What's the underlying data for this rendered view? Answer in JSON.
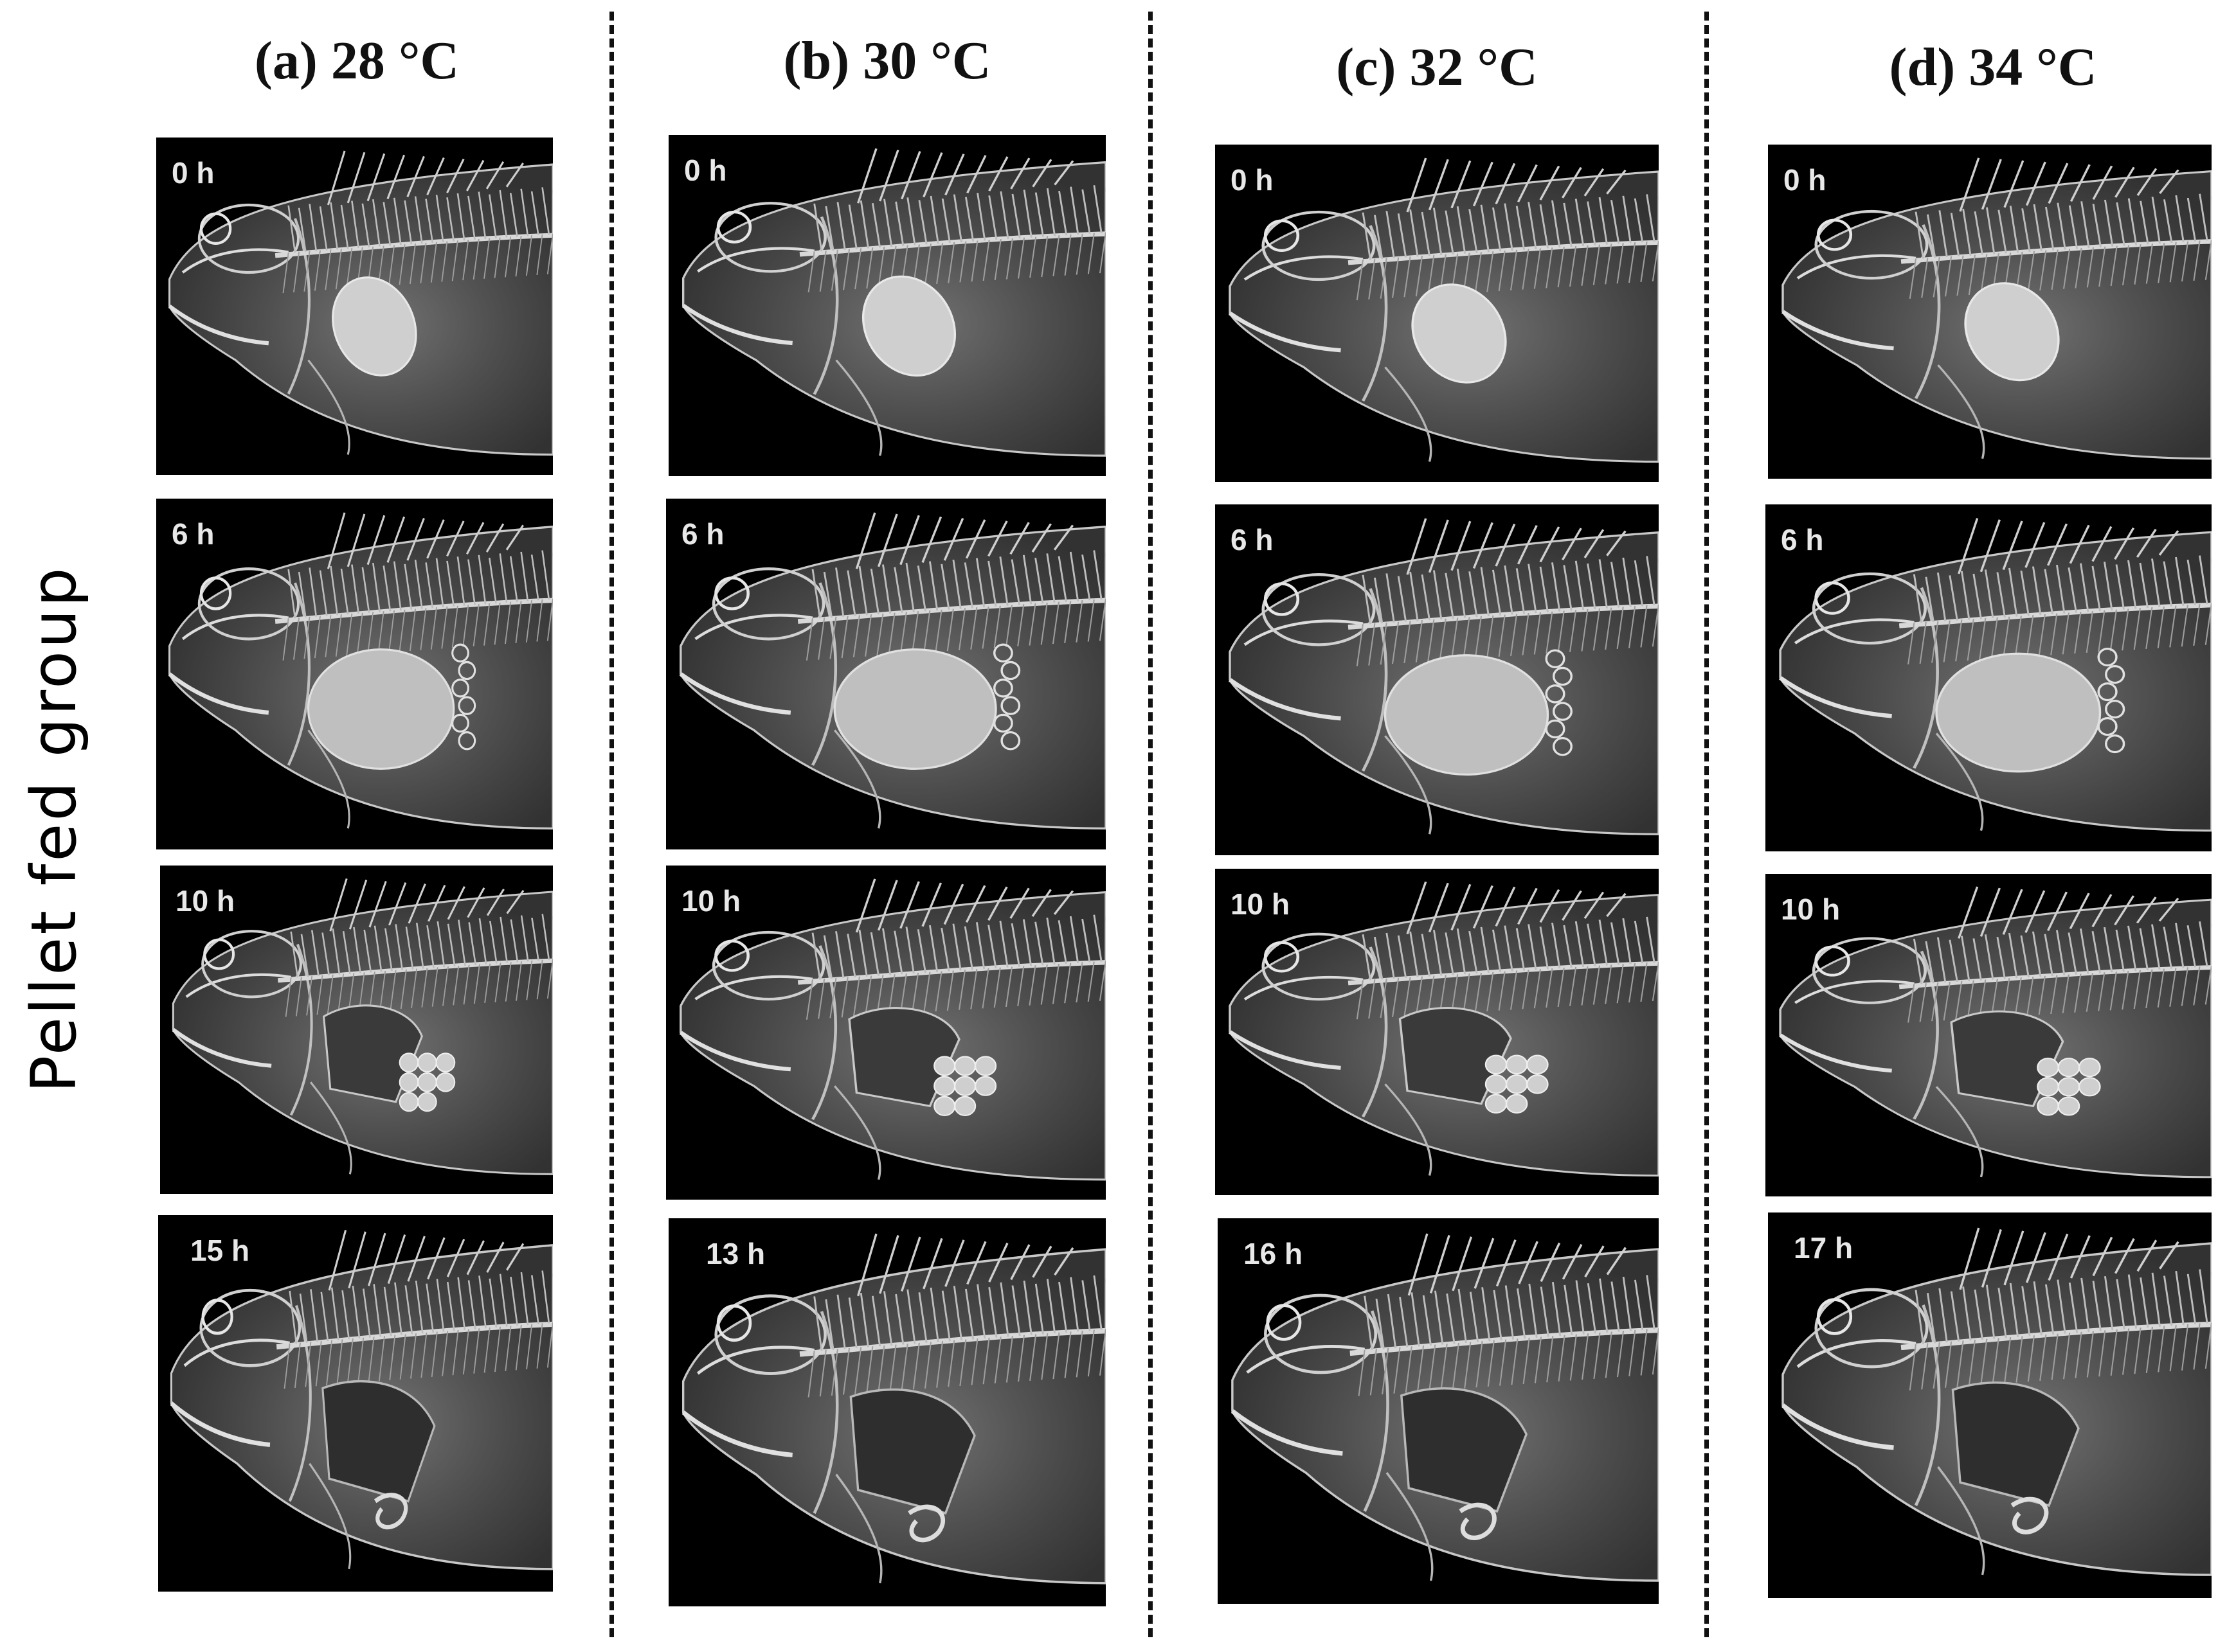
{
  "row_label": "Pellet fed group",
  "columns": [
    {
      "title": "(a) 28 °C",
      "times": [
        "0 h",
        "6 h",
        "10 h",
        "15 h"
      ]
    },
    {
      "title": "(b) 30 °C",
      "times": [
        "0 h",
        "6 h",
        "10 h",
        "13 h"
      ]
    },
    {
      "title": "(c) 32 °C",
      "times": [
        "0 h",
        "6 h",
        "10 h",
        "16 h"
      ]
    },
    {
      "title": "(d) 34 °C",
      "times": [
        "0 h",
        "6 h",
        "10 h",
        "17 h"
      ]
    }
  ],
  "colors": {
    "background": "#ffffff",
    "panel": "#000000",
    "bone": "#d8d8d8",
    "text": "#111111"
  }
}
